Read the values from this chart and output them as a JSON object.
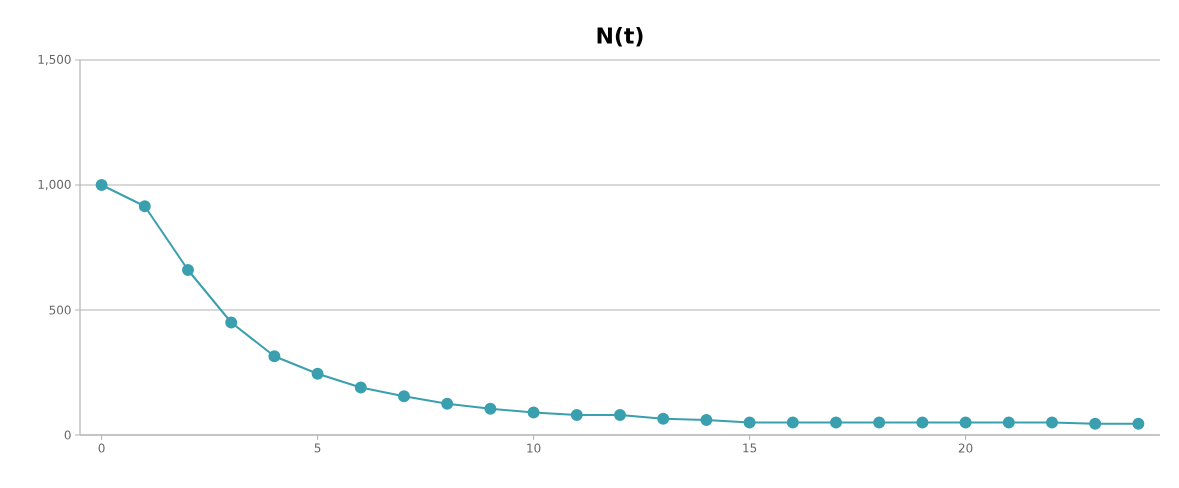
{
  "chart_data": {
    "type": "line",
    "title": "N(t)",
    "x": [
      0,
      1,
      2,
      3,
      4,
      5,
      6,
      7,
      8,
      9,
      10,
      11,
      12,
      13,
      14,
      15,
      16,
      17,
      18,
      19,
      20,
      21,
      22,
      23,
      24
    ],
    "series": [
      {
        "color": "#3a9fae",
        "values": [
          1000,
          915,
          660,
          450,
          315,
          245,
          190,
          155,
          125,
          105,
          90,
          80,
          80,
          65,
          60,
          50,
          50,
          50,
          50,
          50,
          50,
          50,
          50,
          45,
          45
        ]
      }
    ],
    "xlim": [
      -0.5,
      24.5
    ],
    "ylim": [
      0,
      1500
    ],
    "xticks": [
      0,
      5,
      10,
      15,
      20
    ],
    "yticks": [
      0,
      {
        "value": 500,
        "label": "500"
      },
      {
        "value": 1000,
        "label": "1,000"
      },
      {
        "value": 1500,
        "label": "1,500"
      }
    ],
    "grid": "y",
    "marker": "circle",
    "line_style": "solid"
  }
}
